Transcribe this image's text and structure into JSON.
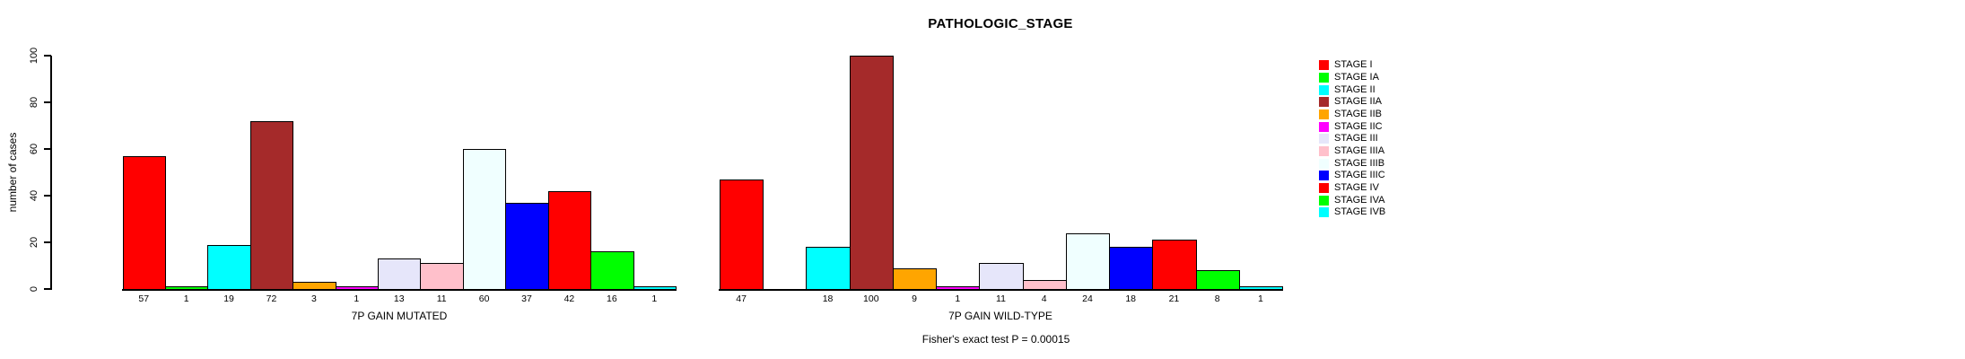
{
  "chart_data": {
    "type": "bar",
    "title": "PATHOLOGIC_STAGE",
    "ylabel": "number of cases",
    "ylim": [
      0,
      100
    ],
    "y_ticks": [
      0,
      20,
      40,
      60,
      80,
      100
    ],
    "grid": false,
    "legend_position": "right",
    "bar_value_labels": true,
    "categories": [
      "STAGE I",
      "STAGE IA",
      "STAGE II",
      "STAGE IIA",
      "STAGE IIB",
      "STAGE IIC",
      "STAGE III",
      "STAGE IIIA",
      "STAGE IIIB",
      "STAGE IIIC",
      "STAGE IV",
      "STAGE IVA",
      "STAGE IVB"
    ],
    "colors": [
      "#FF0000",
      "#00FF00",
      "#00FFFF",
      "#A52A2A",
      "#FFA500",
      "#FF00FF",
      "#E6E6FA",
      "#FFC0CB",
      "#F0FFFF",
      "#0000FF",
      "#FF0000",
      "#00FF00",
      "#00FFFF"
    ],
    "groups": [
      {
        "label": "7P GAIN MUTATED",
        "values": [
          57,
          1,
          19,
          72,
          3,
          1,
          13,
          11,
          60,
          37,
          42,
          16,
          1
        ]
      },
      {
        "label": "7P GAIN WILD-TYPE",
        "values": [
          47,
          0,
          18,
          100,
          9,
          1,
          11,
          4,
          24,
          18,
          21,
          8,
          1
        ]
      }
    ],
    "annotation": "Fisher's exact test P = 0.00015",
    "axis_color": "#000000",
    "background_color": "#FFFFFF"
  }
}
